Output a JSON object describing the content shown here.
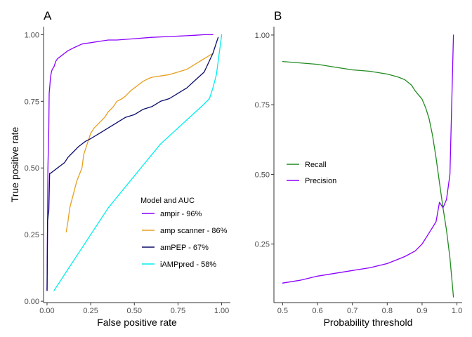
{
  "chart_data": [
    {
      "type": "line",
      "panel_tag": "A",
      "xlabel": "False positive rate",
      "ylabel": "True positive rate",
      "xlim": [
        -0.02,
        1.05
      ],
      "ylim": [
        -0.005,
        1.03
      ],
      "xticks": [
        0,
        0.25,
        0.5,
        0.75,
        1
      ],
      "xtick_labels": [
        "0.00",
        "0.25",
        "0.50",
        "0.75",
        "1.00"
      ],
      "yticks": [
        0,
        0.25,
        0.5,
        0.75,
        1
      ],
      "ytick_labels": [
        "0.00",
        "0.25",
        "0.50",
        "0.75",
        "1.00"
      ],
      "legend": {
        "title": "Model and AUC",
        "position": "bottom-right"
      },
      "series": [
        {
          "name": "ampir - 96%",
          "color": "#8b00ff",
          "x": [
            0.0,
            0.005,
            0.01,
            0.012,
            0.015,
            0.02,
            0.025,
            0.03,
            0.04,
            0.05,
            0.06,
            0.07,
            0.08,
            0.1,
            0.12,
            0.15,
            0.2,
            0.25,
            0.3,
            0.35,
            0.4,
            0.5,
            0.6,
            0.7,
            0.8,
            0.85,
            0.9,
            0.95
          ],
          "y": [
            0.04,
            0.5,
            0.65,
            0.78,
            0.8,
            0.84,
            0.86,
            0.87,
            0.88,
            0.9,
            0.91,
            0.915,
            0.92,
            0.93,
            0.94,
            0.95,
            0.965,
            0.97,
            0.975,
            0.98,
            0.98,
            0.985,
            0.99,
            0.993,
            0.996,
            0.998,
            1.0,
            1.0
          ]
        },
        {
          "name": "amp scanner - 86%",
          "color": "#e6a020",
          "x": [
            0.11,
            0.12,
            0.13,
            0.15,
            0.17,
            0.2,
            0.21,
            0.23,
            0.25,
            0.27,
            0.3,
            0.33,
            0.35,
            0.38,
            0.4,
            0.43,
            0.45,
            0.48,
            0.5,
            0.53,
            0.55,
            0.58,
            0.6,
            0.65,
            0.7,
            0.75,
            0.8,
            0.85,
            0.9,
            0.95
          ],
          "y": [
            0.26,
            0.3,
            0.35,
            0.4,
            0.45,
            0.5,
            0.55,
            0.59,
            0.63,
            0.65,
            0.67,
            0.69,
            0.71,
            0.73,
            0.75,
            0.76,
            0.77,
            0.79,
            0.8,
            0.815,
            0.825,
            0.835,
            0.84,
            0.845,
            0.85,
            0.86,
            0.87,
            0.89,
            0.91,
            0.93
          ]
        },
        {
          "name": "amPEP - 67%",
          "color": "#0b0b6b",
          "x": [
            0.0,
            0.003,
            0.006,
            0.01,
            0.015,
            0.02,
            0.04,
            0.06,
            0.08,
            0.1,
            0.12,
            0.15,
            0.18,
            0.2,
            0.22,
            0.25,
            0.3,
            0.35,
            0.4,
            0.45,
            0.5,
            0.55,
            0.6,
            0.65,
            0.7,
            0.75,
            0.8,
            0.85,
            0.9,
            0.95,
            0.98
          ],
          "y": [
            0.04,
            0.3,
            0.32,
            0.34,
            0.48,
            0.48,
            0.49,
            0.5,
            0.51,
            0.52,
            0.54,
            0.56,
            0.58,
            0.59,
            0.6,
            0.61,
            0.63,
            0.65,
            0.67,
            0.69,
            0.7,
            0.72,
            0.73,
            0.75,
            0.76,
            0.78,
            0.8,
            0.83,
            0.86,
            0.93,
            0.99
          ]
        },
        {
          "name": "iAMPpred - 58%",
          "color": "#00eeee",
          "x": [
            0.04,
            0.08,
            0.12,
            0.16,
            0.2,
            0.25,
            0.3,
            0.35,
            0.4,
            0.45,
            0.5,
            0.55,
            0.6,
            0.65,
            0.7,
            0.75,
            0.8,
            0.85,
            0.9,
            0.93,
            0.95,
            0.97,
            0.99,
            1.0
          ],
          "y": [
            0.04,
            0.08,
            0.12,
            0.16,
            0.2,
            0.25,
            0.3,
            0.35,
            0.39,
            0.43,
            0.47,
            0.51,
            0.55,
            0.59,
            0.62,
            0.65,
            0.68,
            0.71,
            0.74,
            0.76,
            0.8,
            0.85,
            0.95,
            1.0
          ]
        }
      ]
    },
    {
      "type": "line",
      "panel_tag": "B",
      "xlabel": "Probability threshold",
      "ylabel": "",
      "xlim": [
        0.475,
        1.015
      ],
      "ylim": [
        0.04,
        1.03
      ],
      "xticks": [
        0.5,
        0.6,
        0.7,
        0.8,
        0.9,
        1.0
      ],
      "xtick_labels": [
        "0.5",
        "0.6",
        "0.7",
        "0.8",
        "0.9",
        "1.0"
      ],
      "yticks": [
        0.25,
        0.5,
        0.75,
        1
      ],
      "ytick_labels": [
        "0.25",
        "0.50",
        "0.75",
        "1.00"
      ],
      "legend": {
        "title": "",
        "position": "left"
      },
      "series": [
        {
          "name": "Recall",
          "color": "#228b22",
          "x": [
            0.5,
            0.55,
            0.6,
            0.65,
            0.7,
            0.75,
            0.8,
            0.83,
            0.85,
            0.87,
            0.88,
            0.9,
            0.91,
            0.92,
            0.93,
            0.94,
            0.95,
            0.96,
            0.97,
            0.98,
            0.99
          ],
          "y": [
            0.905,
            0.9,
            0.895,
            0.885,
            0.875,
            0.87,
            0.86,
            0.85,
            0.84,
            0.82,
            0.8,
            0.77,
            0.74,
            0.7,
            0.64,
            0.56,
            0.47,
            0.38,
            0.3,
            0.2,
            0.06
          ]
        },
        {
          "name": "Precision",
          "color": "#8b00ff",
          "x": [
            0.5,
            0.55,
            0.6,
            0.65,
            0.7,
            0.75,
            0.8,
            0.82,
            0.85,
            0.88,
            0.9,
            0.92,
            0.94,
            0.95,
            0.96,
            0.97,
            0.98,
            0.99
          ],
          "y": [
            0.11,
            0.12,
            0.135,
            0.145,
            0.155,
            0.165,
            0.18,
            0.19,
            0.205,
            0.225,
            0.25,
            0.29,
            0.33,
            0.4,
            0.38,
            0.41,
            0.5,
            1.0
          ]
        }
      ]
    }
  ]
}
